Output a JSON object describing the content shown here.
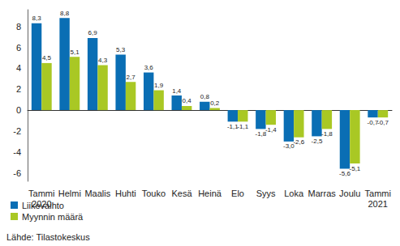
{
  "chart_data": {
    "type": "bar",
    "categories": [
      "Tammi\n2020",
      "Helmi",
      "Maalis",
      "Huhti",
      "Touko",
      "Kesä",
      "Heinä",
      "Elo",
      "Syys",
      "Loka",
      "Marras",
      "Joulu",
      "Tammi\n2021"
    ],
    "series": [
      {
        "name": "Liikevaihto",
        "color": "#0a6eb4",
        "values": [
          8.3,
          8.8,
          6.9,
          5.3,
          3.6,
          1.4,
          0.8,
          -1.1,
          -1.8,
          -3.0,
          -2.5,
          -5.6,
          -0.7
        ],
        "value_labels": [
          "8,3",
          "8,8",
          "6,9",
          "5,3",
          "3,6",
          "1,4",
          "0,8",
          "-1,1",
          "-1,8",
          "-3,0",
          "-2,5",
          "-5,6",
          "-0,7"
        ]
      },
      {
        "name": "Myynnin määrä",
        "color": "#a9c824",
        "values": [
          4.5,
          5.1,
          4.3,
          2.7,
          1.9,
          0.4,
          0.2,
          -1.1,
          -1.4,
          -2.6,
          -1.8,
          -5.1,
          -0.7
        ],
        "value_labels": [
          "4,5",
          "5,1",
          "4,3",
          "2,7",
          "1,9",
          "0,4",
          "0,2",
          "-1,1",
          "-1,4",
          "-2,6",
          "-1,8",
          "-5,1",
          "-0,7"
        ]
      }
    ],
    "ylim": [
      -6.8,
      9.6
    ],
    "yticks": [
      -6,
      -4,
      -2,
      0,
      2,
      4,
      6,
      8
    ],
    "grid": false,
    "legend": "lower left",
    "data_labels": true,
    "annotations": [
      "Lähde: Tilastokeskus"
    ]
  }
}
